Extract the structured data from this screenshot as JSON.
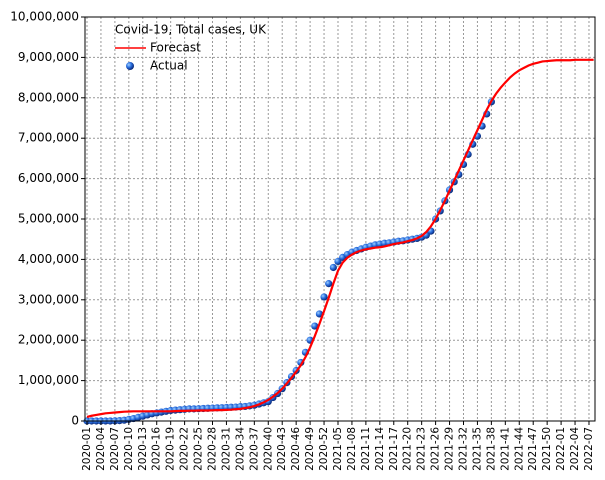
{
  "chart_data": {
    "type": "line",
    "title": "Covid-19, Total cases, UK",
    "categories": [
      "2020-01",
      null,
      null,
      "2020-04",
      null,
      null,
      "2020-07",
      null,
      null,
      "2020-10",
      null,
      null,
      "2020-13",
      null,
      null,
      "2020-16",
      null,
      null,
      "2020-19",
      null,
      null,
      "2020-22",
      null,
      null,
      "2020-25",
      null,
      null,
      "2020-28",
      null,
      null,
      "2020-31",
      null,
      null,
      "2020-34",
      null,
      null,
      "2020-37",
      null,
      null,
      "2020-40",
      null,
      null,
      "2020-43",
      null,
      null,
      "2020-46",
      null,
      null,
      "2020-49",
      null,
      null,
      "2020-52",
      null,
      null,
      "2021-05",
      null,
      null,
      "2021-08",
      null,
      null,
      "2021-11",
      null,
      null,
      "2021-14",
      null,
      null,
      "2021-17",
      null,
      null,
      "2021-20",
      null,
      null,
      "2021-23",
      null,
      null,
      "2021-26",
      null,
      null,
      "2021-29",
      null,
      null,
      "2021-32",
      null,
      null,
      "2021-35",
      null,
      null,
      "2021-38",
      null,
      null,
      "2021-41",
      null,
      null,
      "2021-44",
      null,
      null,
      "2021-47",
      null,
      null,
      "2021-50",
      null,
      null,
      "2022-01",
      null,
      null,
      "2022-04",
      null,
      null,
      "2022-07",
      null
    ],
    "series": [
      {
        "name": "Forecast",
        "type": "line",
        "color": "#ff0000",
        "values": [
          100000,
          130000,
          150000,
          170000,
          190000,
          200000,
          210000,
          220000,
          230000,
          235000,
          240000,
          240000,
          240000,
          240000,
          240000,
          240000,
          240000,
          240000,
          240000,
          245000,
          250000,
          250000,
          255000,
          255000,
          260000,
          260000,
          260000,
          265000,
          270000,
          270000,
          275000,
          280000,
          290000,
          300000,
          320000,
          340000,
          370000,
          410000,
          460000,
          520000,
          600000,
          690000,
          800000,
          930000,
          1070000,
          1220000,
          1380000,
          1580000,
          1820000,
          2100000,
          2400000,
          2720000,
          3050000,
          3400000,
          3720000,
          3920000,
          4040000,
          4120000,
          4180000,
          4220000,
          4250000,
          4270000,
          4290000,
          4300000,
          4320000,
          4350000,
          4380000,
          4400000,
          4420000,
          4450000,
          4480000,
          4520000,
          4580000,
          4680000,
          4820000,
          5000000,
          5220000,
          5450000,
          5700000,
          5950000,
          6200000,
          6450000,
          6700000,
          6950000,
          7200000,
          7450000,
          7700000,
          7920000,
          8100000,
          8250000,
          8380000,
          8500000,
          8600000,
          8680000,
          8740000,
          8800000,
          8840000,
          8870000,
          8900000,
          8910000,
          8920000,
          8930000,
          8930000,
          8930000,
          8930000,
          8940000,
          8940000,
          8940000,
          8940000,
          8940000
        ]
      },
      {
        "name": "Actual",
        "type": "scatter",
        "color": "#1f5fd6",
        "values": [
          0,
          0,
          0,
          0,
          0,
          0,
          5000,
          10000,
          20000,
          40000,
          60000,
          90000,
          120000,
          150000,
          180000,
          200000,
          220000,
          240000,
          260000,
          270000,
          280000,
          290000,
          300000,
          300000,
          305000,
          310000,
          315000,
          320000,
          325000,
          330000,
          335000,
          340000,
          345000,
          355000,
          360000,
          375000,
          390000,
          420000,
          450000,
          480000,
          580000,
          680000,
          800000,
          950000,
          1100000,
          1250000,
          1450000,
          1700000,
          2000000,
          2350000,
          2650000,
          3070000,
          3400000,
          3800000,
          3950000,
          4050000,
          4120000,
          4180000,
          4220000,
          4260000,
          4300000,
          4330000,
          4360000,
          4380000,
          4400000,
          4410000,
          4430000,
          4450000,
          4460000,
          4480000,
          4500000,
          4520000,
          4550000,
          4600000,
          4700000,
          5000000,
          5200000,
          5450000,
          5720000,
          5920000,
          6100000,
          6350000,
          6600000,
          6850000,
          7050000,
          7300000,
          7600000,
          7900000,
          null,
          null,
          null,
          null,
          null,
          null,
          null,
          null,
          null,
          null,
          null,
          null,
          null,
          null,
          null,
          null,
          null,
          null,
          null,
          null,
          null,
          null
        ]
      }
    ],
    "ylim": [
      0,
      10000000
    ],
    "yticks": [
      0,
      {
        "value": 1000000,
        "label": "1,000,000"
      },
      {
        "value": 2000000,
        "label": "2,000,000"
      },
      {
        "value": 3000000,
        "label": "3,000,000"
      },
      {
        "value": 4000000,
        "label": "4,000,000"
      },
      {
        "value": 5000000,
        "label": "5,000,000"
      },
      {
        "value": 6000000,
        "label": "6,000,000"
      },
      {
        "value": 7000000,
        "label": "7,000,000"
      },
      {
        "value": 8000000,
        "label": "8,000,000"
      },
      {
        "value": 9000000,
        "label": "9,000,000"
      },
      {
        "value": 10000000,
        "label": "10,000,000"
      }
    ],
    "grid": true
  }
}
